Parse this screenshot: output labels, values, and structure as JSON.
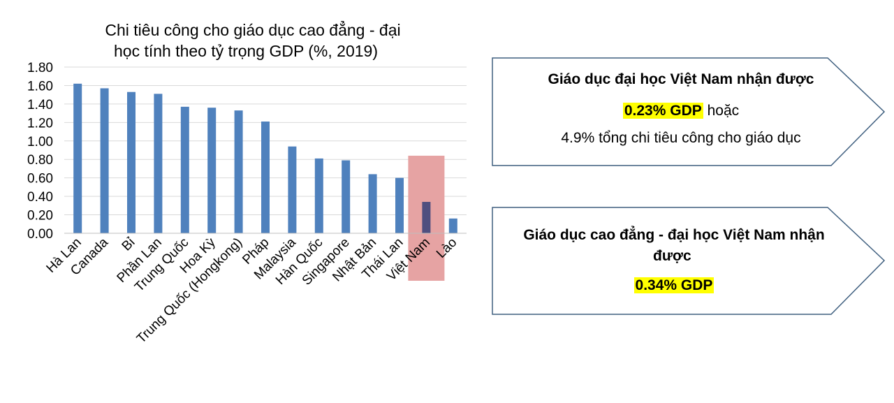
{
  "chart_data": {
    "type": "bar",
    "title_line1": "Chi tiêu công cho giáo dục cao đẳng - đại",
    "title_line2": "học tính theo tỷ trọng GDP (%, 2019)",
    "categories": [
      "Hà Lan",
      "Canada",
      "Bỉ",
      "Phần Lan",
      "Trung Quốc",
      "Hoa Kỳ",
      "Trung Quốc  (Hongkong)",
      "Pháp",
      "Malaysia",
      "Hàn Quốc",
      "Singapore",
      "Nhật Bản",
      "Thái Lan",
      "Việt Nam",
      "Lào"
    ],
    "values": [
      1.62,
      1.57,
      1.53,
      1.51,
      1.37,
      1.36,
      1.33,
      1.21,
      0.94,
      0.81,
      0.79,
      0.64,
      0.6,
      0.34,
      0.16
    ],
    "ylim": [
      0,
      1.8
    ],
    "yticks": [
      "0.00",
      "0.20",
      "0.40",
      "0.60",
      "0.80",
      "1.00",
      "1.20",
      "1.40",
      "1.60",
      "1.80"
    ],
    "grid": true,
    "highlight_category": "Việt Nam",
    "bar_color": "#4f81bd",
    "highlight_bar_color": "#4f4f7f",
    "highlight_box_color": "#e6a3a3"
  },
  "callouts": {
    "university": {
      "title": "Giáo dục đại học Việt Nam nhận được",
      "value": "0.23%  GDP",
      "value_suffix": " hoặc",
      "note": "4.9% tổng chi tiêu công cho giáo dục"
    },
    "tertiary": {
      "title_line1": "Giáo dục cao đẳng - đại học Việt Nam nhận",
      "title_line2": "được",
      "value": "0.34%  GDP"
    }
  }
}
